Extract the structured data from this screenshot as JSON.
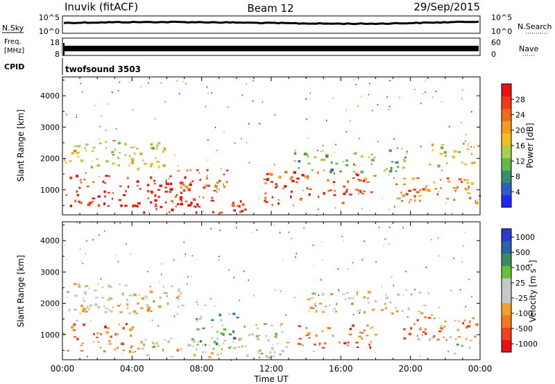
{
  "header": {
    "station": "Inuvik (fitACF)",
    "beam": "Beam 12",
    "date": "29/Sep/2015"
  },
  "nsky_panel": {
    "left_label": "N.Sky",
    "left_ticks": [
      "10^5",
      "10^0"
    ],
    "right_ticks": [
      "10^5",
      "10^0"
    ],
    "right_label": "N.Search"
  },
  "freq_panel": {
    "left_label_1": "Freq.",
    "left_label_2": "[MHz]",
    "left_ticks": [
      "18",
      "8"
    ],
    "right_ticks": [
      "60",
      "0"
    ],
    "right_label": "Nave"
  },
  "cpid": {
    "label": "CPID",
    "program": "twofsound 3503"
  },
  "colors": {
    "power": [
      "#2424ff",
      "#2c5cc8",
      "#3a8c6e",
      "#62b84a",
      "#a6d24a",
      "#f0c020",
      "#f49a1e",
      "#f26a18",
      "#f03a14",
      "#ee1010"
    ],
    "velocity": [
      "#ee1010",
      "#f24018",
      "#f4781e",
      "#f4a028",
      "#c8c8c8",
      "#c8c8c8",
      "#66c03a",
      "#3a8c5a",
      "#2c62a8",
      "#2a3ad0"
    ]
  },
  "chart_data": [
    {
      "type": "heatmap",
      "panel": "power",
      "xlabel": "Time UT",
      "ylabel": "Slant Range [km]",
      "x_ticks": [
        "00:00",
        "04:00",
        "08:00",
        "12:00",
        "16:00",
        "20:00",
        "00:00"
      ],
      "xlim_hours": [
        0,
        24
      ],
      "ylim": [
        200,
        4600
      ],
      "y_ticks": [
        "1000",
        "2000",
        "3000",
        "4000"
      ],
      "y_tick_values": [
        1000,
        2000,
        3000,
        4000
      ],
      "colorbar_label": "Power [dB]",
      "colorbar_ticks": [
        "4",
        "8",
        "12",
        "16",
        "20",
        "24",
        "28"
      ],
      "colorbar_range": [
        0,
        32
      ],
      "bands": [
        {
          "t0": 0.0,
          "t1": 7.5,
          "r0": 500,
          "r1": 1500,
          "level": 0.9
        },
        {
          "t0": 0.0,
          "t1": 6.0,
          "r0": 1700,
          "r1": 2600,
          "level": 0.55
        },
        {
          "t0": 3.5,
          "t1": 10.0,
          "r0": 300,
          "r1": 700,
          "level": 0.95
        },
        {
          "t0": 6.5,
          "t1": 9.5,
          "r0": 700,
          "r1": 1700,
          "level": 0.75
        },
        {
          "t0": 10.0,
          "t1": 12.5,
          "r0": 300,
          "r1": 700,
          "level": 0.9
        },
        {
          "t0": 11.5,
          "t1": 18.0,
          "r0": 600,
          "r1": 1600,
          "level": 0.85
        },
        {
          "t0": 13.0,
          "t1": 20.0,
          "r0": 1600,
          "r1": 2300,
          "level": 0.35
        },
        {
          "t0": 19.0,
          "t1": 24.0,
          "r0": 600,
          "r1": 1500,
          "level": 0.7
        },
        {
          "t0": 21.0,
          "t1": 24.0,
          "r0": 1800,
          "r1": 2500,
          "level": 0.5
        }
      ]
    },
    {
      "type": "heatmap",
      "panel": "velocity",
      "xlabel": "Time UT",
      "ylabel": "Slant Range [km]",
      "x_ticks": [
        "00:00",
        "04:00",
        "08:00",
        "12:00",
        "16:00",
        "20:00",
        "00:00"
      ],
      "xlim_hours": [
        0,
        24
      ],
      "ylim": [
        200,
        4600
      ],
      "y_ticks": [
        "1000",
        "2000",
        "3000",
        "4000"
      ],
      "y_tick_values": [
        1000,
        2000,
        3000,
        4000
      ],
      "colorbar_label": "Velocity [m s^-1]",
      "colorbar_ticks": [
        "1000",
        "500",
        "100",
        "25",
        "-25",
        "-100",
        "-500",
        "-1000"
      ],
      "bands": [
        {
          "t0": 0.0,
          "t1": 4.0,
          "r0": 500,
          "r1": 1400,
          "level": 0.25
        },
        {
          "t0": 0.0,
          "t1": 7.0,
          "r0": 1700,
          "r1": 2700,
          "level": 0.45
        },
        {
          "t0": 4.0,
          "t1": 10.0,
          "r0": 300,
          "r1": 900,
          "level": 0.45
        },
        {
          "t0": 7.5,
          "t1": 10.0,
          "r0": 700,
          "r1": 1700,
          "level": 0.7
        },
        {
          "t0": 10.0,
          "t1": 13.0,
          "r0": 300,
          "r1": 1400,
          "level": 0.5
        },
        {
          "t0": 13.5,
          "t1": 18.0,
          "r0": 600,
          "r1": 1400,
          "level": 0.25
        },
        {
          "t0": 14.0,
          "t1": 21.0,
          "r0": 1700,
          "r1": 2400,
          "level": 0.45
        },
        {
          "t0": 19.5,
          "t1": 24.0,
          "r0": 800,
          "r1": 1600,
          "level": 0.3
        },
        {
          "t0": 22.5,
          "t1": 24.0,
          "r0": 600,
          "r1": 900,
          "level": 0.65
        }
      ]
    }
  ],
  "time_label": "Time UT"
}
